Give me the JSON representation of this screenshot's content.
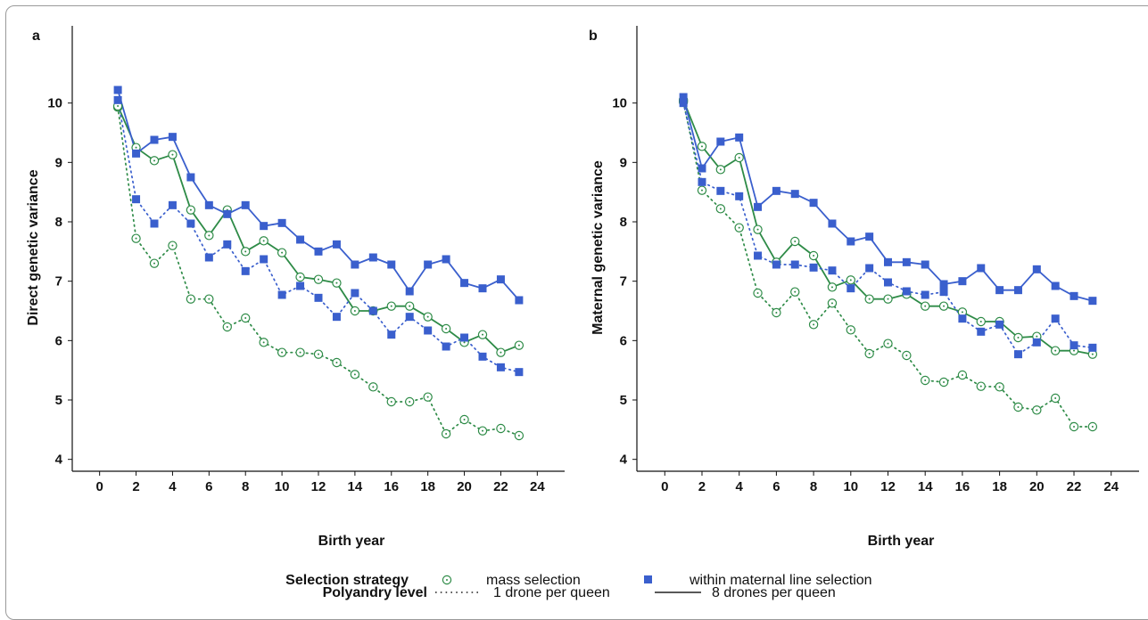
{
  "chart_data": [
    {
      "type": "line",
      "panel_label": "a",
      "xlabel": "Birth year",
      "ylabel": "Direct genetic variance",
      "xlim": [
        -1.5,
        25.5
      ],
      "ylim": [
        3.8,
        11.3
      ],
      "x_ticks": [
        0,
        2,
        4,
        6,
        8,
        10,
        12,
        14,
        16,
        18,
        20,
        22,
        24
      ],
      "y_ticks": [
        4,
        5,
        6,
        7,
        8,
        9,
        10
      ],
      "grid": false,
      "x": [
        1,
        2,
        3,
        4,
        5,
        6,
        7,
        8,
        9,
        10,
        11,
        12,
        13,
        14,
        15,
        16,
        17,
        18,
        19,
        20,
        21,
        22,
        23
      ],
      "series": [
        {
          "strategy": "mass",
          "polyandry": "1 drone per queen",
          "values": [
            9.93,
            7.72,
            7.3,
            7.6,
            6.7,
            6.7,
            6.23,
            6.38,
            5.97,
            5.8,
            5.8,
            5.77,
            5.63,
            5.43,
            5.22,
            4.97,
            4.97,
            5.05,
            4.43,
            4.67,
            4.48,
            4.52,
            4.4
          ]
        },
        {
          "strategy": "mass",
          "polyandry": "8 drones per queen",
          "values": [
            9.95,
            9.25,
            9.03,
            9.13,
            8.2,
            7.77,
            8.2,
            7.5,
            7.68,
            7.48,
            7.07,
            7.03,
            6.97,
            6.5,
            6.5,
            6.58,
            6.58,
            6.4,
            6.2,
            5.97,
            6.1,
            5.8,
            5.92
          ]
        },
        {
          "strategy": "within",
          "polyandry": "1 drone per queen",
          "values": [
            10.05,
            8.38,
            7.97,
            8.28,
            7.97,
            7.4,
            7.62,
            7.17,
            7.37,
            6.77,
            6.92,
            6.72,
            6.4,
            6.8,
            6.5,
            6.1,
            6.4,
            6.17,
            5.9,
            6.05,
            5.73,
            5.55,
            5.47
          ]
        },
        {
          "strategy": "within",
          "polyandry": "8 drones per queen",
          "values": [
            10.22,
            9.15,
            9.38,
            9.43,
            8.75,
            8.28,
            8.13,
            8.28,
            7.93,
            7.98,
            7.7,
            7.5,
            7.62,
            7.28,
            7.4,
            7.28,
            6.83,
            7.28,
            7.37,
            6.97,
            6.88,
            7.03,
            6.68
          ]
        }
      ]
    },
    {
      "type": "line",
      "panel_label": "b",
      "xlabel": "Birth year",
      "ylabel": "Maternal genetic variance",
      "xlim": [
        -1.5,
        25.5
      ],
      "ylim": [
        3.8,
        11.3
      ],
      "x_ticks": [
        0,
        2,
        4,
        6,
        8,
        10,
        12,
        14,
        16,
        18,
        20,
        22,
        24
      ],
      "y_ticks": [
        4,
        5,
        6,
        7,
        8,
        9,
        10
      ],
      "grid": false,
      "x": [
        1,
        2,
        3,
        4,
        5,
        6,
        7,
        8,
        9,
        10,
        11,
        12,
        13,
        14,
        15,
        16,
        17,
        18,
        19,
        20,
        21,
        22,
        23
      ],
      "series": [
        {
          "strategy": "mass",
          "polyandry": "1 drone per queen",
          "values": [
            10.02,
            8.53,
            8.22,
            7.9,
            6.8,
            6.47,
            6.82,
            6.27,
            6.63,
            6.18,
            5.78,
            5.95,
            5.75,
            5.33,
            5.3,
            5.42,
            5.23,
            5.22,
            4.88,
            4.83,
            5.03,
            4.55,
            4.55
          ]
        },
        {
          "strategy": "mass",
          "polyandry": "8 drones per queen",
          "values": [
            10.05,
            9.27,
            8.88,
            9.08,
            7.87,
            7.32,
            7.67,
            7.43,
            6.9,
            7.02,
            6.7,
            6.7,
            6.78,
            6.58,
            6.58,
            6.48,
            6.32,
            6.32,
            6.05,
            6.07,
            5.83,
            5.83,
            5.77
          ]
        },
        {
          "strategy": "within",
          "polyandry": "1 drone per queen",
          "values": [
            10.0,
            8.67,
            8.52,
            8.43,
            7.43,
            7.28,
            7.28,
            7.23,
            7.18,
            6.88,
            7.22,
            6.98,
            6.83,
            6.77,
            6.82,
            6.37,
            6.15,
            6.27,
            5.77,
            5.97,
            6.37,
            5.92,
            5.88
          ]
        },
        {
          "strategy": "within",
          "polyandry": "8 drones per queen",
          "values": [
            10.1,
            8.9,
            9.35,
            9.42,
            8.25,
            8.52,
            8.47,
            8.32,
            7.97,
            7.67,
            7.75,
            7.32,
            7.32,
            7.28,
            6.95,
            7.0,
            7.22,
            6.85,
            6.85,
            7.2,
            6.92,
            6.75,
            6.67
          ]
        }
      ]
    }
  ],
  "colors": {
    "mass": "#2e8b47",
    "within": "#3a5fcd",
    "axis": "#111111"
  },
  "legend": {
    "strategy_title": "Selection strategy",
    "strategy_items": [
      {
        "key": "mass",
        "label": "mass selection",
        "marker": "open-circle-dot"
      },
      {
        "key": "within",
        "label": "within maternal line selection",
        "marker": "filled-square"
      }
    ],
    "polyandry_title": "Polyandry level",
    "polyandry_items": [
      {
        "label": "1 drone per queen",
        "line": "dotted"
      },
      {
        "label": "8 drones per queen",
        "line": "solid"
      }
    ]
  }
}
